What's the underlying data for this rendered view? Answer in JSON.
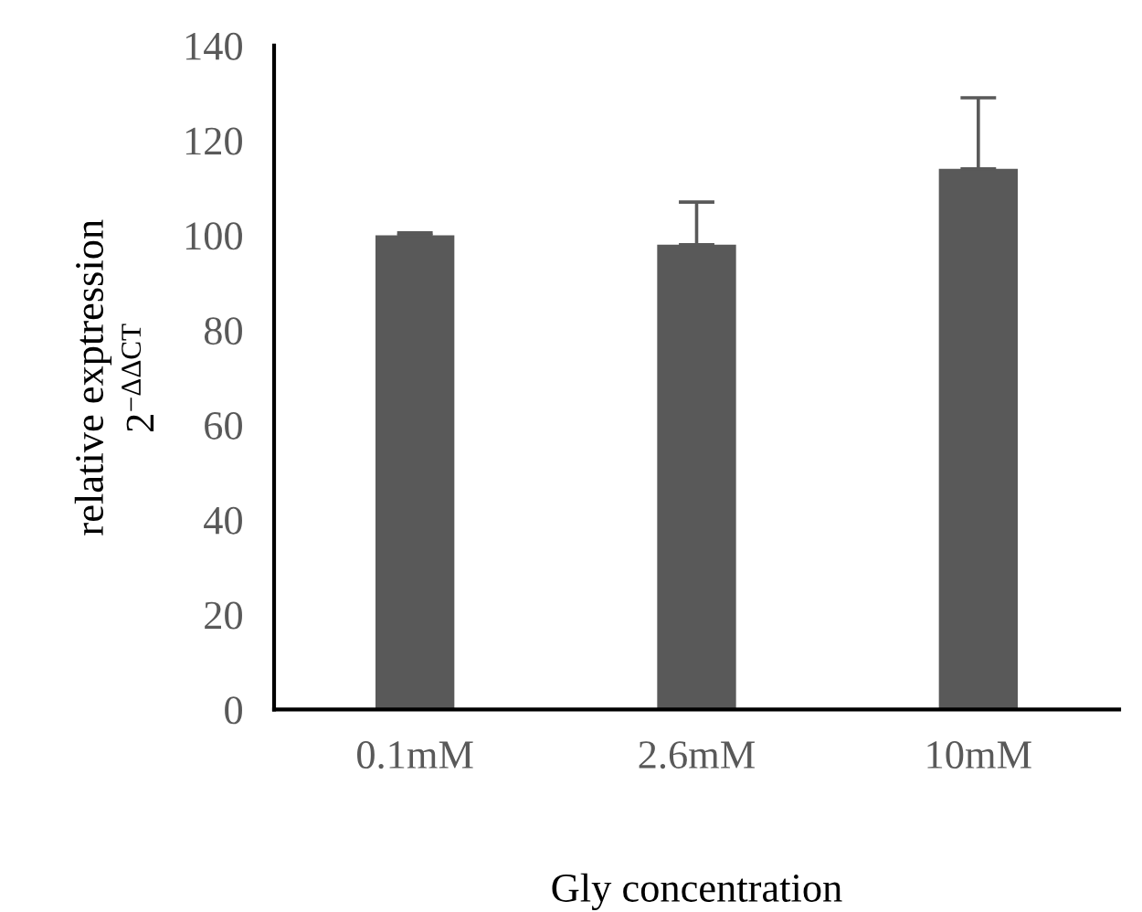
{
  "chart_data": {
    "type": "bar",
    "xlabel": "Gly concentration",
    "ylabel": "relative exptression\n2$^{−ΔΔCT}$",
    "categories": [
      "0.1mM",
      "2.6mM",
      "10mM"
    ],
    "values": [
      100,
      98,
      114
    ],
    "errors": [
      [
        100,
        100.5
      ],
      [
        98,
        107
      ],
      [
        114,
        129
      ]
    ],
    "color": "#595959",
    "ylim": [
      0,
      140
    ],
    "yticks": [
      0,
      20,
      40,
      60,
      80,
      100,
      120,
      140
    ],
    "grid": false,
    "legend": false
  }
}
